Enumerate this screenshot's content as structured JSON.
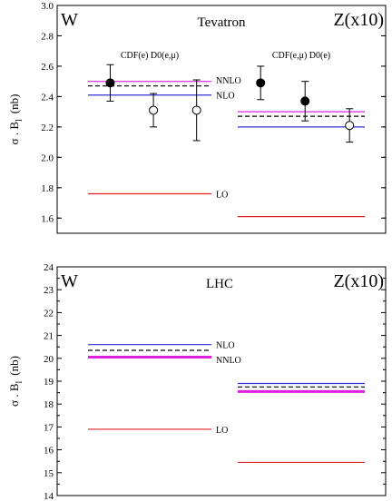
{
  "chart_data": [
    {
      "type": "line",
      "title": "Tevatron",
      "ylabel": "σ . B_l (nb)",
      "ylabel_main": "σ . B",
      "ylabel_sub": "l",
      "ylabel_unit": "(nb)",
      "ylim": [
        1.5,
        3.0
      ],
      "ytick_step": 0.2,
      "ytick_labels": [
        "1.6",
        "1.8",
        "2.0",
        "2.2",
        "2.4",
        "2.6",
        "2.8",
        "3.0"
      ],
      "panel_labels": {
        "left": "W",
        "right": "Z(x10)"
      },
      "series": [
        {
          "name": "NNLO",
          "color": "#e020e0",
          "style": "solid",
          "W": 2.5,
          "Z": 2.3
        },
        {
          "name": "NLO",
          "color": "#3030d0",
          "style": "solid",
          "W": 2.41,
          "Z": 2.2
        },
        {
          "name": "",
          "color": "#000000",
          "style": "dashed",
          "W": 2.47,
          "Z": 2.27
        },
        {
          "name": "LO",
          "color": "#e02020",
          "style": "solid",
          "W": 1.76,
          "Z": 1.61
        }
      ],
      "line_labels": [
        {
          "text": "NNLO",
          "side": "W",
          "value": 2.51
        },
        {
          "text": "NLO",
          "side": "W",
          "value": 2.41
        },
        {
          "text": "LO",
          "side": "W",
          "value": 1.76
        }
      ],
      "experiment_labels": [
        {
          "text": "CDF(e)  D0(e,μ)",
          "side": "W"
        },
        {
          "text": "CDF(e,μ)  D0(e)",
          "side": "Z"
        }
      ],
      "points": [
        {
          "side": "W",
          "pos": 0.18,
          "value": 2.49,
          "err_low": 0.12,
          "err_high": 0.12,
          "filled": true
        },
        {
          "side": "W",
          "pos": 0.53,
          "value": 2.31,
          "err_low": 0.11,
          "err_high": 0.11,
          "filled": false
        },
        {
          "side": "W",
          "pos": 0.88,
          "value": 2.31,
          "err_low": 0.2,
          "err_high": 0.2,
          "filled": false
        },
        {
          "side": "Z",
          "pos": 0.18,
          "value": 2.49,
          "err_low": 0.11,
          "err_high": 0.11,
          "filled": true
        },
        {
          "side": "Z",
          "pos": 0.53,
          "value": 2.37,
          "err_low": 0.13,
          "err_high": 0.13,
          "filled": true
        },
        {
          "side": "Z",
          "pos": 0.88,
          "value": 2.21,
          "err_low": 0.11,
          "err_high": 0.11,
          "filled": false
        }
      ]
    },
    {
      "type": "line",
      "title": "LHC",
      "ylabel": "σ . B_l (nb)",
      "ylabel_main": "σ . B",
      "ylabel_sub": "l",
      "ylabel_unit": "(nb)",
      "ylim": [
        14,
        24
      ],
      "ytick_step": 1,
      "ytick_labels": [
        "14",
        "15",
        "16",
        "17",
        "18",
        "19",
        "20",
        "21",
        "22",
        "23",
        "24"
      ],
      "panel_labels": {
        "left": "W",
        "right": "Z(x10)"
      },
      "series": [
        {
          "name": "NLO",
          "color": "#3030d0",
          "style": "solid",
          "W": 20.6,
          "Z": 18.9
        },
        {
          "name": "",
          "color": "#000000",
          "style": "dashed",
          "W": 20.35,
          "Z": 18.75
        },
        {
          "name": "NNLO",
          "color": "#e020e0",
          "style": "thick",
          "W": 20.05,
          "Z": 18.55
        },
        {
          "name": "LO",
          "color": "#e02020",
          "style": "solid",
          "W": 16.9,
          "Z": 15.45
        }
      ],
      "line_labels": [
        {
          "text": "NLO",
          "side": "W",
          "value": 20.6
        },
        {
          "text": "NNLO",
          "side": "W",
          "value": 19.95
        },
        {
          "text": "LO",
          "side": "W",
          "value": 16.9
        }
      ],
      "experiment_labels": [],
      "points": []
    }
  ]
}
